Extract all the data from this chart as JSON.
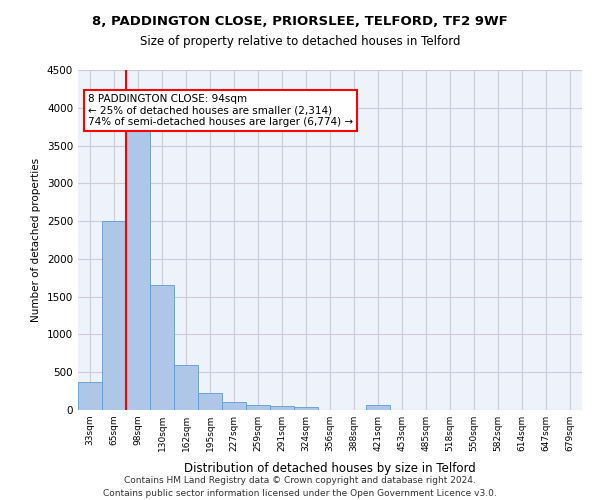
{
  "title1": "8, PADDINGTON CLOSE, PRIORSLEE, TELFORD, TF2 9WF",
  "title2": "Size of property relative to detached houses in Telford",
  "xlabel": "Distribution of detached houses by size in Telford",
  "ylabel": "Number of detached properties",
  "footer1": "Contains HM Land Registry data © Crown copyright and database right 2024.",
  "footer2": "Contains public sector information licensed under the Open Government Licence v3.0.",
  "categories": [
    "33sqm",
    "65sqm",
    "98sqm",
    "130sqm",
    "162sqm",
    "195sqm",
    "227sqm",
    "259sqm",
    "291sqm",
    "324sqm",
    "356sqm",
    "388sqm",
    "421sqm",
    "453sqm",
    "485sqm",
    "518sqm",
    "550sqm",
    "582sqm",
    "614sqm",
    "647sqm",
    "679sqm"
  ],
  "values": [
    370,
    2500,
    3750,
    1650,
    590,
    225,
    110,
    70,
    55,
    40,
    0,
    0,
    70,
    0,
    0,
    0,
    0,
    0,
    0,
    0,
    0
  ],
  "bar_color": "#aec6e8",
  "bar_edge_color": "#5b9bd5",
  "grid_color": "#ccccdd",
  "background_color": "#eef2fb",
  "vline_x": 1,
  "vline_color": "red",
  "annotation_text": "8 PADDINGTON CLOSE: 94sqm\n← 25% of detached houses are smaller (2,314)\n74% of semi-detached houses are larger (6,774) →",
  "annotation_box_color": "white",
  "annotation_box_edge": "red",
  "ylim": [
    0,
    4500
  ],
  "yticks": [
    0,
    500,
    1000,
    1500,
    2000,
    2500,
    3000,
    3500,
    4000,
    4500
  ]
}
